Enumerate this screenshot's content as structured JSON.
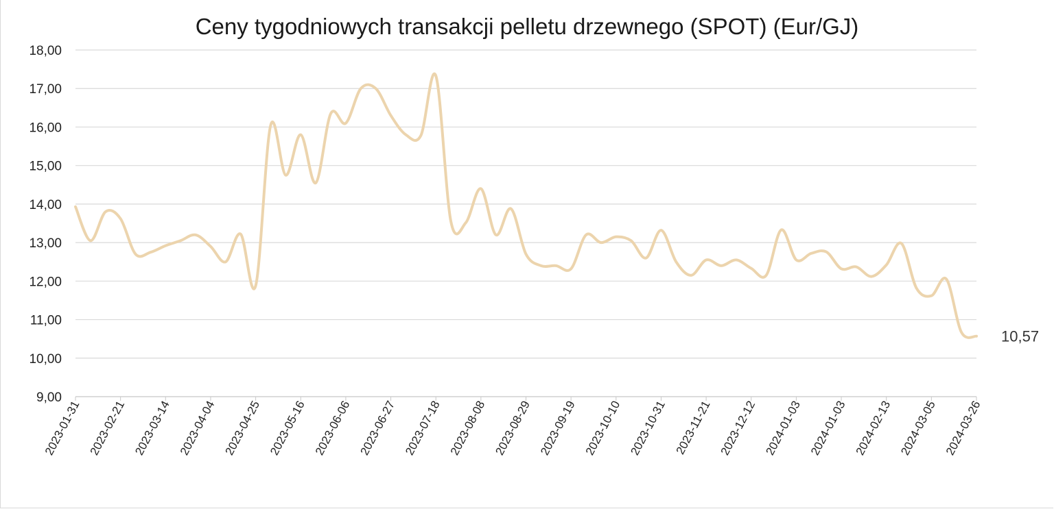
{
  "chart_data": {
    "type": "line",
    "title": "Ceny tygodniowych transakcji pelletu drzewnego (SPOT) (Eur/GJ)",
    "xlabel": "",
    "ylabel": "",
    "ylim": [
      9,
      18
    ],
    "y_ticks": [
      "9,00",
      "10,00",
      "11,00",
      "12,00",
      "13,00",
      "14,00",
      "15,00",
      "16,00",
      "17,00",
      "18,00"
    ],
    "x_tick_labels": [
      "2023-01-31",
      "2023-02-21",
      "2023-03-14",
      "2023-04-04",
      "2023-04-25",
      "2023-05-16",
      "2023-06-06",
      "2023-06-27",
      "2023-07-18",
      "2023-08-08",
      "2023-08-29",
      "2023-09-19",
      "2023-10-10",
      "2023-10-31",
      "2023-11-21",
      "2023-12-12",
      "2024-01-03",
      "2024-01-03",
      "2024-02-13",
      "2024-03-05",
      "2024-03-26"
    ],
    "grid": true,
    "legend": "none",
    "line_color": "#ecd4ad",
    "series": [
      {
        "values": [
          13.93,
          13.05,
          13.8,
          13.62,
          12.7,
          12.75,
          12.92,
          13.05,
          13.2,
          12.9,
          12.5,
          13.22,
          11.88,
          16.05,
          14.75,
          15.8,
          14.55,
          16.35,
          16.1,
          17.0,
          17.0,
          16.3,
          15.8,
          15.78,
          17.33,
          13.55,
          13.52,
          14.4,
          13.2,
          13.88,
          12.7,
          12.4,
          12.4,
          12.32,
          13.2,
          13.0,
          13.15,
          13.05,
          12.6,
          13.32,
          12.5,
          12.15,
          12.55,
          12.4,
          12.55,
          12.33,
          12.15,
          13.33,
          12.55,
          12.72,
          12.76,
          12.32,
          12.37,
          12.12,
          12.42,
          12.98,
          11.82,
          11.62,
          12.05,
          10.67,
          10.57
        ],
        "end_label": "10,57"
      }
    ]
  }
}
